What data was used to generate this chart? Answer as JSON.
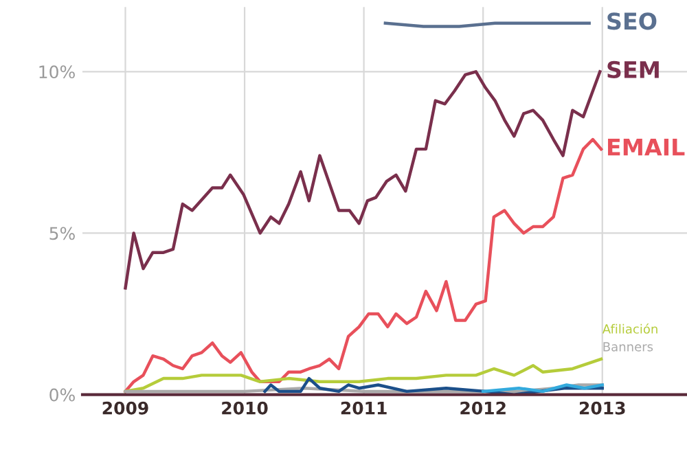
{
  "chart_data": {
    "type": "line",
    "xlim": [
      2008.64,
      2013.71
    ],
    "xticks": [
      2009,
      2010,
      2011,
      2012,
      2013
    ],
    "ylim": [
      0,
      12
    ],
    "yticks": [
      {
        "value": 0,
        "label": "0%"
      },
      {
        "value": 5,
        "label": "5%"
      },
      {
        "value": 10,
        "label": "10%"
      }
    ],
    "grid": true,
    "legend": false,
    "marker": "none",
    "line_style": "solid",
    "series": [
      {
        "name": "SEO",
        "color": "#5a7090",
        "x": [
          2011.18,
          2011.5,
          2011.8,
          2012.1,
          2012.4,
          2012.89
        ],
        "values": [
          11.5,
          11.4,
          11.4,
          11.5,
          11.5,
          11.5
        ]
      },
      {
        "name": "SEM",
        "color": "#7a2f4c",
        "x": [
          2009.0,
          2009.07,
          2009.15,
          2009.23,
          2009.32,
          2009.4,
          2009.48,
          2009.56,
          2009.73,
          2009.81,
          2009.88,
          2009.99,
          2010.13,
          2010.22,
          2010.29,
          2010.37,
          2010.47,
          2010.54,
          2010.63,
          2010.79,
          2010.88,
          2010.96,
          2011.03,
          2011.1,
          2011.19,
          2011.27,
          2011.35,
          2011.44,
          2011.52,
          2011.6,
          2011.68,
          2011.76,
          2011.85,
          2011.94,
          2012.02,
          2012.1,
          2012.18,
          2012.26,
          2012.34,
          2012.42,
          2012.5,
          2012.59,
          2012.67,
          2012.75,
          2012.84,
          2012.98
        ],
        "values": [
          3.3,
          5.0,
          3.9,
          4.4,
          4.4,
          4.5,
          5.9,
          5.7,
          6.4,
          6.4,
          6.8,
          6.2,
          5.0,
          5.5,
          5.3,
          5.9,
          6.9,
          6.0,
          7.4,
          5.7,
          5.7,
          5.3,
          6.0,
          6.1,
          6.6,
          6.8,
          6.3,
          7.6,
          7.6,
          9.1,
          9.0,
          9.4,
          9.9,
          10.0,
          9.5,
          9.1,
          8.5,
          8.0,
          8.7,
          8.8,
          8.5,
          7.9,
          7.4,
          8.8,
          8.6,
          10.0
        ]
      },
      {
        "name": "EMAIL",
        "color": "#e8505b",
        "x": [
          2009.0,
          2009.07,
          2009.15,
          2009.23,
          2009.32,
          2009.4,
          2009.48,
          2009.56,
          2009.64,
          2009.73,
          2009.81,
          2009.88,
          2009.97,
          2010.06,
          2010.13,
          2010.22,
          2010.29,
          2010.37,
          2010.47,
          2010.54,
          2010.63,
          2010.71,
          2010.79,
          2010.87,
          2010.96,
          2011.04,
          2011.12,
          2011.2,
          2011.27,
          2011.36,
          2011.44,
          2011.52,
          2011.61,
          2011.69,
          2011.77,
          2011.85,
          2011.94,
          2012.02,
          2012.09,
          2012.18,
          2012.26,
          2012.34,
          2012.42,
          2012.5,
          2012.59,
          2012.67,
          2012.75,
          2012.84,
          2012.92,
          2012.99
        ],
        "values": [
          0.1,
          0.4,
          0.6,
          1.2,
          1.1,
          0.9,
          0.8,
          1.2,
          1.3,
          1.6,
          1.2,
          1.0,
          1.3,
          0.7,
          0.4,
          0.4,
          0.4,
          0.7,
          0.7,
          0.8,
          0.9,
          1.1,
          0.8,
          1.8,
          2.1,
          2.5,
          2.5,
          2.1,
          2.5,
          2.2,
          2.4,
          3.2,
          2.6,
          3.5,
          2.3,
          2.3,
          2.8,
          2.9,
          5.5,
          5.7,
          5.3,
          5.0,
          5.2,
          5.2,
          5.5,
          6.7,
          6.8,
          7.6,
          7.9,
          7.6
        ]
      },
      {
        "name": "Afiliación",
        "color": "#b5cc3a",
        "x": [
          2009.0,
          2009.15,
          2009.32,
          2009.48,
          2009.64,
          2009.81,
          2009.97,
          2010.13,
          2010.37,
          2010.63,
          2010.96,
          2011.2,
          2011.44,
          2011.69,
          2011.94,
          2012.09,
          2012.26,
          2012.42,
          2012.5,
          2012.75,
          2012.99
        ],
        "values": [
          0.1,
          0.2,
          0.5,
          0.5,
          0.6,
          0.6,
          0.6,
          0.4,
          0.5,
          0.4,
          0.4,
          0.5,
          0.5,
          0.6,
          0.6,
          0.8,
          0.6,
          0.9,
          0.7,
          0.8,
          1.1
        ]
      },
      {
        "name": "Banners",
        "color": "#aaaaaa",
        "x": [
          2009.0,
          2009.5,
          2010.0,
          2010.5,
          2011.0,
          2011.5,
          2012.0,
          2012.3,
          2012.6,
          2012.8,
          2013.0
        ],
        "values": [
          0.1,
          0.1,
          0.1,
          0.2,
          0.1,
          0.1,
          0.1,
          0.1,
          0.2,
          0.3,
          0.3
        ]
      },
      {
        "color": "#1b4f8a",
        "x": [
          2010.17,
          2010.22,
          2010.29,
          2010.47,
          2010.54,
          2010.63,
          2010.79,
          2010.87,
          2010.96,
          2011.12,
          2011.36,
          2011.69,
          2012.02,
          2012.26,
          2012.68,
          2013.0
        ],
        "values": [
          0.1,
          0.3,
          0.1,
          0.1,
          0.5,
          0.2,
          0.1,
          0.3,
          0.2,
          0.3,
          0.1,
          0.2,
          0.1,
          0.0,
          0.2,
          0.2
        ]
      },
      {
        "color": "#33aadd",
        "x": [
          2012.0,
          2012.3,
          2012.5,
          2012.7,
          2012.85,
          2013.0
        ],
        "values": [
          0.1,
          0.2,
          0.1,
          0.3,
          0.2,
          0.3
        ]
      }
    ]
  }
}
